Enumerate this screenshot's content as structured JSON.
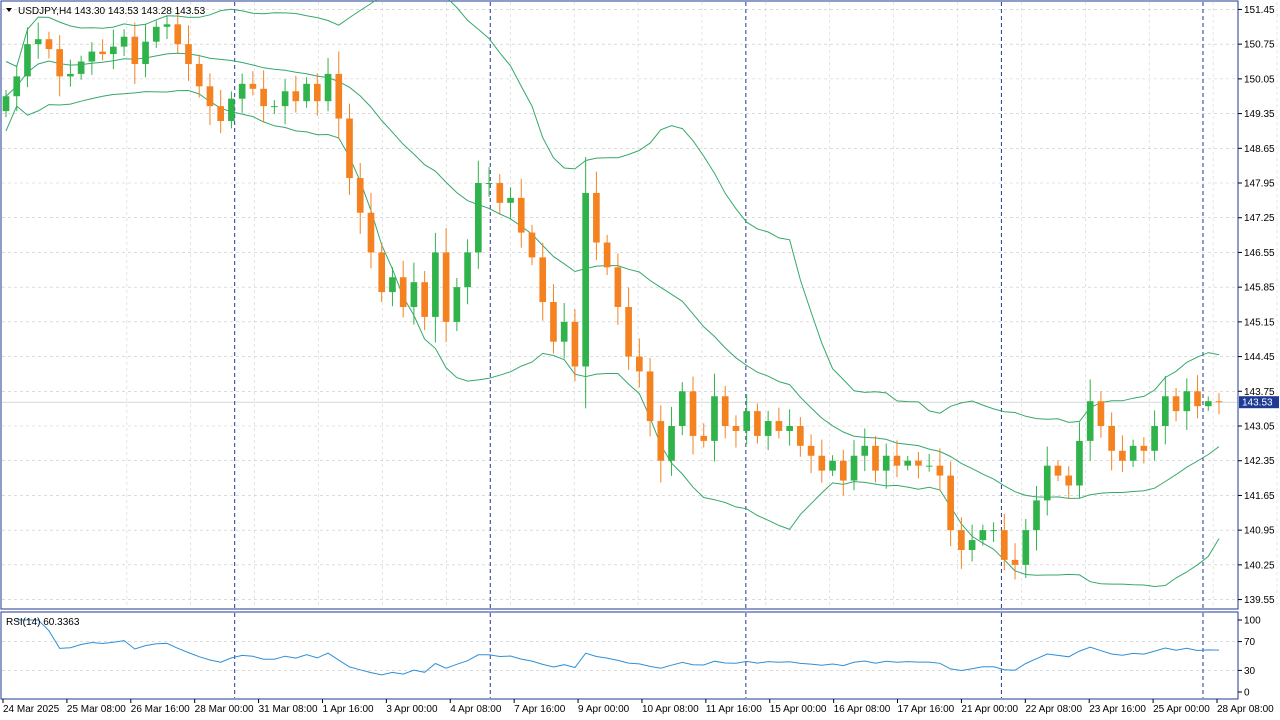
{
  "header": {
    "symbol_line": "USDJPY,H4  143.30 143.53 143.28 143.53"
  },
  "colors": {
    "bull": "#2fb34a",
    "bear": "#f58220",
    "band": "#35a869",
    "rsi": "#2f8fd6",
    "grid": "#c8c8c8",
    "frame": "#1f3a93",
    "price_tag_bg": "#1f3a93"
  },
  "price_tag": "143.53",
  "rsi_label": "RSI(14) 60.3363",
  "chart_data": [
    {
      "type": "candlestick",
      "title": "USDJPY,H4",
      "price_axis": {
        "ylim": [
          139.38,
          151.6
        ],
        "ticks": [
          "151.45",
          "150.75",
          "150.05",
          "149.35",
          "148.65",
          "147.95",
          "147.25",
          "146.55",
          "145.85",
          "145.15",
          "144.45",
          "143.75",
          "143.05",
          "142.35",
          "141.65",
          "140.95",
          "140.25",
          "139.55"
        ]
      },
      "time_labels": [
        "24 Mar 2025",
        "25 Mar 08:00",
        "26 Mar 16:00",
        "28 Mar 00:00",
        "31 Mar 08:00",
        "1 Apr 16:00",
        "3 Apr 00:00",
        "4 Apr 08:00",
        "7 Apr 16:00",
        "9 Apr 00:00",
        "10 Apr 08:00",
        "11 Apr 16:00",
        "15 Apr 00:00",
        "16 Apr 08:00",
        "17 Apr 16:00",
        "21 Apr 00:00",
        "22 Apr 08:00",
        "23 Apr 16:00",
        "25 Apr 00:00",
        "28 Apr 08:00"
      ],
      "day_separators": [
        "28 Mar 00:00",
        "4 Apr 08:00",
        "11 Apr 16:00",
        "21 Apr 00:00",
        "28 Apr 00:00"
      ],
      "close": [
        149.7,
        150.1,
        150.75,
        150.85,
        150.65,
        150.1,
        150.15,
        150.4,
        150.6,
        150.55,
        150.7,
        150.9,
        150.35,
        150.8,
        151.1,
        151.15,
        150.75,
        150.35,
        149.9,
        149.5,
        149.2,
        149.65,
        149.95,
        149.85,
        149.5,
        149.5,
        149.8,
        149.6,
        149.95,
        149.6,
        150.15,
        149.25,
        148.05,
        147.35,
        146.55,
        145.75,
        146.05,
        145.45,
        145.95,
        145.25,
        146.55,
        145.15,
        145.85,
        146.55,
        147.95,
        147.95,
        147.55,
        147.65,
        146.95,
        146.45,
        145.55,
        144.75,
        145.15,
        144.25,
        147.75,
        146.75,
        146.25,
        145.45,
        144.45,
        144.15,
        143.15,
        142.35,
        143.05,
        143.75,
        142.85,
        142.75,
        143.65,
        143.05,
        142.95,
        143.35,
        142.85,
        143.15,
        142.95,
        143.05,
        142.65,
        142.45,
        142.15,
        142.35,
        141.95,
        142.45,
        142.65,
        142.15,
        142.45,
        142.25,
        142.35,
        142.25,
        142.25,
        142.05,
        140.95,
        140.55,
        140.75,
        140.95,
        140.95,
        140.35,
        140.25,
        140.95,
        141.55,
        142.25,
        142.05,
        141.85,
        142.75,
        143.55,
        143.05,
        142.55,
        142.35,
        142.65,
        142.55,
        143.05,
        143.65,
        143.35,
        143.75,
        143.45,
        143.55,
        143.53
      ]
    },
    {
      "type": "line",
      "name": "RSI(14)",
      "ylim": [
        0,
        100
      ],
      "ticks": [
        "100",
        "70",
        "30",
        "0"
      ],
      "value": 60.3363
    }
  ]
}
